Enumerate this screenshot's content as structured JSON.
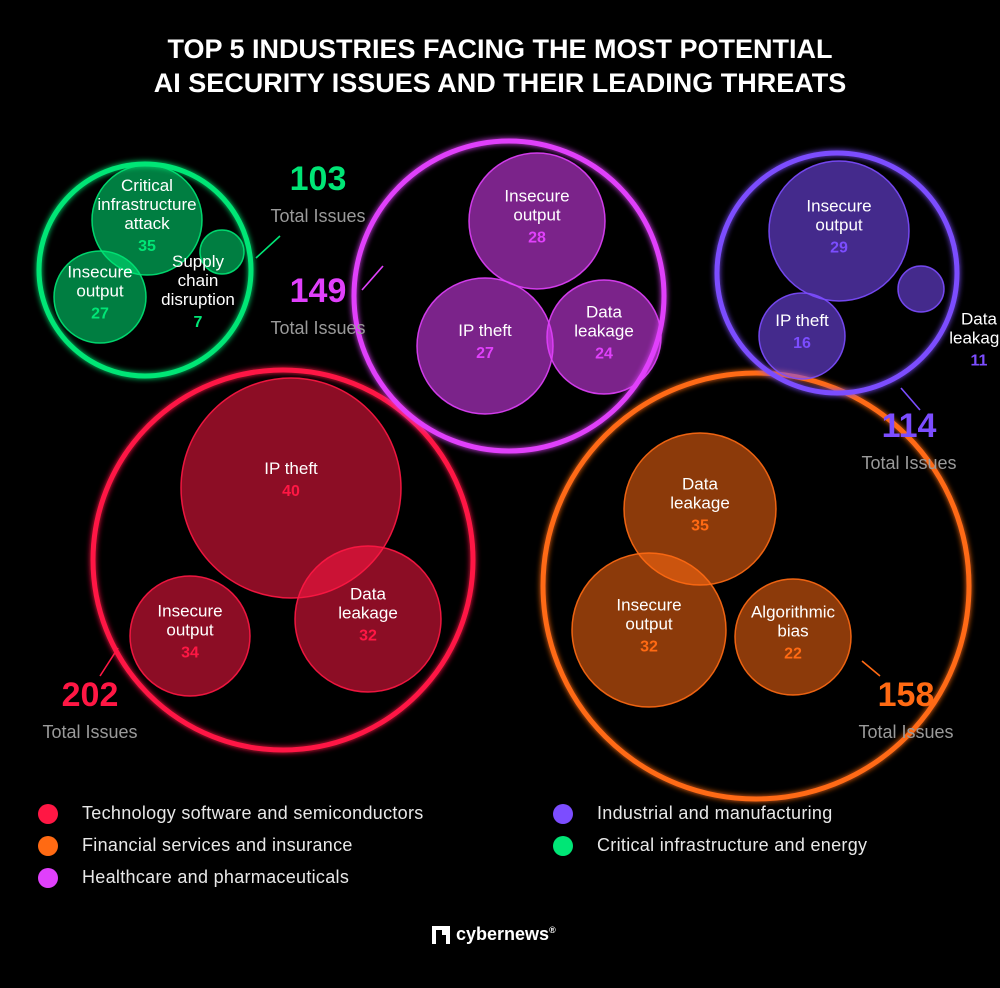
{
  "title_lines": [
    "TOP 5 INDUSTRIES FACING THE MOST POTENTIAL",
    "AI SECURITY ISSUES AND THEIR LEADING THREATS"
  ],
  "total_issues_label": "Total Issues",
  "brand": {
    "name": "cybernews",
    "reg": "®",
    "icon": "cybernews-logo-icon"
  },
  "legend": [
    {
      "label": "Technology software and semiconductors",
      "color": "#ff1744"
    },
    {
      "label": "Financial services and insurance",
      "color": "#ff6a13"
    },
    {
      "label": "Healthcare and pharmaceuticals",
      "color": "#e040fb"
    },
    {
      "label": "Industrial and manufacturing",
      "color": "#7c4dff"
    },
    {
      "label": "Critical infrastructure and energy",
      "color": "#00e676"
    }
  ],
  "chart_data": {
    "type": "bubble",
    "title": "TOP 5 INDUSTRIES FACING THE MOST POTENTIAL AI SECURITY ISSUES AND THEIR LEADING THREATS",
    "industries": [
      {
        "name": "Technology software and semiconductors",
        "color": "#ff1744",
        "total": 202,
        "threats": [
          {
            "label": [
              "IP theft"
            ],
            "value": 40
          },
          {
            "label": [
              "Insecure",
              "output"
            ],
            "value": 34
          },
          {
            "label": [
              "Data",
              "leakage"
            ],
            "value": 32
          }
        ]
      },
      {
        "name": "Financial services and insurance",
        "color": "#ff6a13",
        "total": 158,
        "threats": [
          {
            "label": [
              "Data",
              "leakage"
            ],
            "value": 35
          },
          {
            "label": [
              "Insecure",
              "output"
            ],
            "value": 32
          },
          {
            "label": [
              "Algorithmic",
              "bias"
            ],
            "value": 22
          }
        ]
      },
      {
        "name": "Healthcare and pharmaceuticals",
        "color": "#e040fb",
        "total": 149,
        "threats": [
          {
            "label": [
              "Insecure",
              "output"
            ],
            "value": 28
          },
          {
            "label": [
              "IP theft"
            ],
            "value": 27
          },
          {
            "label": [
              "Data",
              "leakage"
            ],
            "value": 24
          }
        ]
      },
      {
        "name": "Industrial and manufacturing",
        "color": "#7c4dff",
        "total": 114,
        "threats": [
          {
            "label": [
              "Insecure",
              "output"
            ],
            "value": 29
          },
          {
            "label": [
              "IP theft"
            ],
            "value": 16
          },
          {
            "label": [
              "Data",
              "leakage"
            ],
            "value": 11
          }
        ]
      },
      {
        "name": "Critical infrastructure and energy",
        "color": "#00e676",
        "total": 103,
        "threats": [
          {
            "label": [
              "Critical",
              "infrastructure",
              "attack"
            ],
            "value": 35
          },
          {
            "label": [
              "Insecure",
              "output"
            ],
            "value": 27
          },
          {
            "label": [
              "Supply",
              "chain",
              "disruption"
            ],
            "value": 7
          }
        ]
      }
    ]
  }
}
